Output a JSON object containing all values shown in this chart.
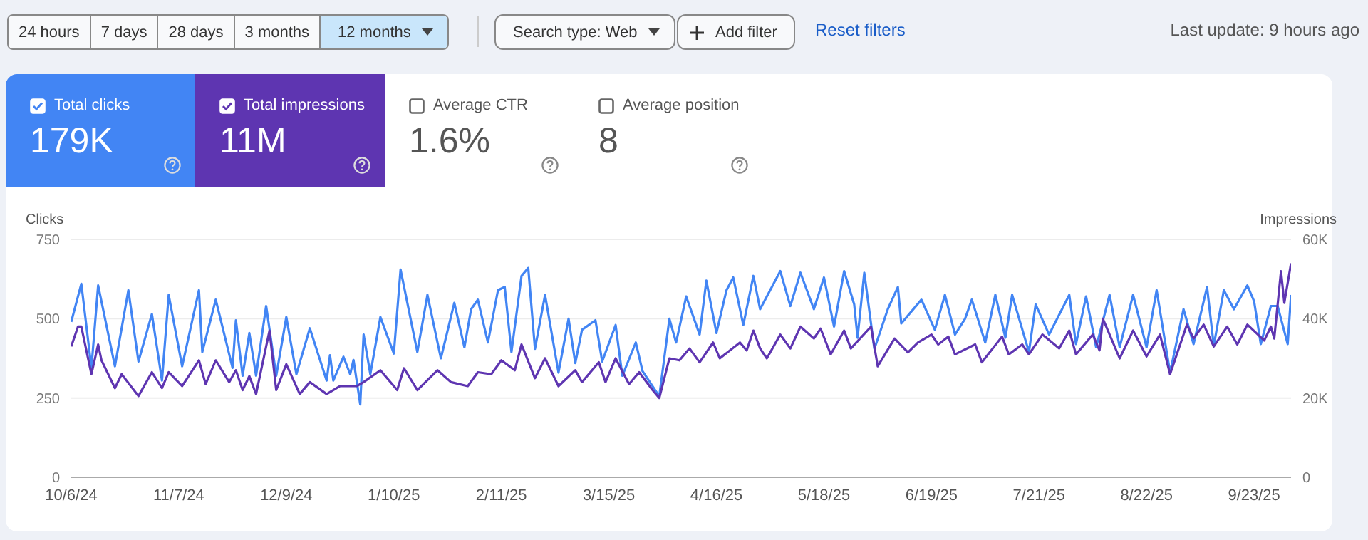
{
  "chart_data": {
    "type": "line",
    "ylabel": "Clicks",
    "y2label": "Impressions",
    "xlim": [
      "2024-10-06",
      "2025-10-04"
    ],
    "xticks": [
      {
        "value": "2024-10-06",
        "label": "10/6/24"
      },
      {
        "value": "2024-11-07",
        "label": "11/7/24"
      },
      {
        "value": "2024-12-09",
        "label": "12/9/24"
      },
      {
        "value": "2025-01-10",
        "label": "1/10/25"
      },
      {
        "value": "2025-02-11",
        "label": "2/11/25"
      },
      {
        "value": "2025-03-15",
        "label": "3/15/25"
      },
      {
        "value": "2025-04-16",
        "label": "4/16/25"
      },
      {
        "value": "2025-05-18",
        "label": "5/18/25"
      },
      {
        "value": "2025-06-19",
        "label": "6/19/25"
      },
      {
        "value": "2025-07-21",
        "label": "7/21/25"
      },
      {
        "value": "2025-08-22",
        "label": "8/22/25"
      },
      {
        "value": "2025-09-23",
        "label": "9/23/25"
      }
    ],
    "ylim": [
      0,
      750
    ],
    "yticks": [
      0,
      250,
      500,
      750
    ],
    "y2lim": [
      0,
      60000
    ],
    "y2ticks": [
      0,
      {
        "value": 20000,
        "label": "20K"
      },
      {
        "value": 40000,
        "label": "40K"
      },
      {
        "value": 60000,
        "label": "60K"
      }
    ],
    "grid": "y",
    "legend": "top left",
    "series": [
      {
        "name": "Total clicks",
        "color": "#4285f4",
        "x": [
          "2024-10-06",
          "2024-10-09",
          "2024-10-12",
          "2024-10-14",
          "2024-10-19",
          "2024-10-23",
          "2024-10-26",
          "2024-10-30",
          "2024-11-02",
          "2024-11-04",
          "2024-11-08",
          "2024-11-13",
          "2024-11-14",
          "2024-11-18",
          "2024-11-23",
          "2024-11-24",
          "2024-11-26",
          "2024-11-28",
          "2024-11-30",
          "2024-12-03",
          "2024-12-06",
          "2024-12-09",
          "2024-12-12",
          "2024-12-16",
          "2024-12-21",
          "2024-12-22",
          "2024-12-23",
          "2024-12-26",
          "2024-12-28",
          "2024-12-29",
          "2024-12-31",
          "2025-01-01",
          "2025-01-03",
          "2025-01-06",
          "2025-01-10",
          "2025-01-12",
          "2025-01-17",
          "2025-01-20",
          "2025-01-24",
          "2025-01-28",
          "2025-01-31",
          "2025-02-02",
          "2025-02-04",
          "2025-02-07",
          "2025-02-10",
          "2025-02-12",
          "2025-02-14",
          "2025-02-17",
          "2025-02-19",
          "2025-02-21",
          "2025-02-24",
          "2025-02-28",
          "2025-03-03",
          "2025-03-05",
          "2025-03-07",
          "2025-03-11",
          "2025-03-13",
          "2025-03-17",
          "2025-03-19",
          "2025-03-23",
          "2025-03-25",
          "2025-03-30",
          "2025-04-02",
          "2025-04-04",
          "2025-04-07",
          "2025-04-11",
          "2025-04-13",
          "2025-04-16",
          "2025-04-19",
          "2025-04-21",
          "2025-04-24",
          "2025-04-27",
          "2025-04-29",
          "2025-05-05",
          "2025-05-08",
          "2025-05-11",
          "2025-05-15",
          "2025-05-18",
          "2025-05-21",
          "2025-05-24",
          "2025-05-27",
          "2025-05-28",
          "2025-05-30",
          "2025-06-02",
          "2025-06-06",
          "2025-06-09",
          "2025-06-10",
          "2025-06-16",
          "2025-06-20",
          "2025-06-23",
          "2025-06-26",
          "2025-06-29",
          "2025-07-01",
          "2025-07-05",
          "2025-07-08",
          "2025-07-11",
          "2025-07-13",
          "2025-07-18",
          "2025-07-20",
          "2025-07-24",
          "2025-07-30",
          "2025-08-01",
          "2025-08-04",
          "2025-08-07",
          "2025-08-11",
          "2025-08-14",
          "2025-08-18",
          "2025-08-22",
          "2025-08-25",
          "2025-08-29",
          "2025-09-02",
          "2025-09-05",
          "2025-09-09",
          "2025-09-11",
          "2025-09-14",
          "2025-09-17",
          "2025-09-21",
          "2025-09-23",
          "2025-09-25",
          "2025-09-28",
          "2025-09-30",
          "2025-10-03",
          "2025-10-04"
        ],
        "values": [
          490,
          610,
          345,
          605,
          350,
          590,
          365,
          515,
          305,
          575,
          350,
          590,
          395,
          560,
          345,
          495,
          320,
          455,
          320,
          540,
          320,
          505,
          325,
          470,
          305,
          385,
          305,
          380,
          325,
          370,
          230,
          450,
          325,
          505,
          390,
          655,
          395,
          575,
          375,
          550,
          410,
          530,
          560,
          425,
          590,
          600,
          395,
          635,
          660,
          405,
          575,
          330,
          500,
          360,
          465,
          495,
          365,
          480,
          320,
          425,
          335,
          255,
          500,
          425,
          570,
          450,
          620,
          455,
          590,
          630,
          480,
          635,
          530,
          650,
          540,
          645,
          530,
          630,
          475,
          650,
          545,
          440,
          645,
          405,
          530,
          600,
          485,
          560,
          465,
          575,
          450,
          500,
          560,
          425,
          575,
          440,
          575,
          395,
          545,
          450,
          575,
          420,
          570,
          410,
          575,
          410,
          575,
          410,
          590,
          330,
          530,
          420,
          600,
          415,
          590,
          530,
          605,
          555,
          420,
          540,
          540,
          420,
          575
        ]
      },
      {
        "name": "Total impressions",
        "color": "#5e35b1",
        "axis": "y2",
        "x": [
          "2024-10-06",
          "2024-10-08",
          "2024-10-09",
          "2024-10-12",
          "2024-10-14",
          "2024-10-15",
          "2024-10-19",
          "2024-10-21",
          "2024-10-26",
          "2024-10-30",
          "2024-11-02",
          "2024-11-04",
          "2024-11-08",
          "2024-11-13",
          "2024-11-15",
          "2024-11-18",
          "2024-11-22",
          "2024-11-24",
          "2024-11-26",
          "2024-11-28",
          "2024-11-30",
          "2024-12-04",
          "2024-12-06",
          "2024-12-09",
          "2024-12-13",
          "2024-12-16",
          "2024-12-21",
          "2024-12-25",
          "2024-12-30",
          "2025-01-01",
          "2025-01-06",
          "2025-01-11",
          "2025-01-13",
          "2025-01-17",
          "2025-01-23",
          "2025-01-27",
          "2025-02-01",
          "2025-02-04",
          "2025-02-08",
          "2025-02-11",
          "2025-02-15",
          "2025-02-17",
          "2025-02-21",
          "2025-02-24",
          "2025-02-28",
          "2025-03-05",
          "2025-03-07",
          "2025-03-12",
          "2025-03-14",
          "2025-03-17",
          "2025-03-21",
          "2025-03-24",
          "2025-03-28",
          "2025-03-30",
          "2025-04-02",
          "2025-04-05",
          "2025-04-08",
          "2025-04-11",
          "2025-04-15",
          "2025-04-17",
          "2025-04-23",
          "2025-04-25",
          "2025-04-27",
          "2025-04-29",
          "2025-05-01",
          "2025-05-05",
          "2025-05-08",
          "2025-05-11",
          "2025-05-15",
          "2025-05-17",
          "2025-05-20",
          "2025-05-24",
          "2025-05-26",
          "2025-06-01",
          "2025-06-03",
          "2025-06-08",
          "2025-06-12",
          "2025-06-15",
          "2025-06-19",
          "2025-06-21",
          "2025-06-24",
          "2025-06-26",
          "2025-07-02",
          "2025-07-04",
          "2025-07-10",
          "2025-07-12",
          "2025-07-16",
          "2025-07-18",
          "2025-07-22",
          "2025-07-27",
          "2025-07-30",
          "2025-08-01",
          "2025-08-06",
          "2025-08-08",
          "2025-08-09",
          "2025-08-14",
          "2025-08-18",
          "2025-08-22",
          "2025-08-26",
          "2025-08-29",
          "2025-09-03",
          "2025-09-05",
          "2025-09-08",
          "2025-09-11",
          "2025-09-15",
          "2025-09-18",
          "2025-09-21",
          "2025-09-26",
          "2025-09-28",
          "2025-09-29",
          "2025-10-01",
          "2025-10-02",
          "2025-10-04"
        ],
        "values": [
          33000,
          38000,
          38000,
          26000,
          33500,
          29500,
          22500,
          26000,
          20500,
          26500,
          22500,
          26500,
          23000,
          29500,
          23500,
          29500,
          24000,
          27000,
          22000,
          25500,
          21000,
          37000,
          22000,
          28500,
          21000,
          24000,
          21000,
          23000,
          23000,
          24000,
          27000,
          22000,
          27500,
          22000,
          27000,
          24000,
          23000,
          26500,
          26000,
          29500,
          27000,
          33500,
          25000,
          30000,
          23000,
          27000,
          24000,
          29000,
          24000,
          30000,
          23500,
          26500,
          22000,
          20000,
          30000,
          29500,
          32500,
          29000,
          34000,
          30000,
          34000,
          32000,
          37000,
          32500,
          30000,
          36000,
          32500,
          38000,
          35000,
          37500,
          31000,
          37000,
          32500,
          38000,
          28000,
          35000,
          31500,
          34000,
          36000,
          33500,
          35500,
          31000,
          33500,
          29000,
          35500,
          31000,
          33500,
          31000,
          36000,
          32500,
          37000,
          31000,
          36000,
          32000,
          40000,
          30000,
          37000,
          30500,
          36000,
          26000,
          38500,
          35000,
          38500,
          33000,
          38000,
          33500,
          38500,
          34500,
          38000,
          35000,
          52000,
          44000,
          54000
        ]
      }
    ],
    "annotations": [
      "24 hours",
      "7 days",
      "28 days",
      "3 months",
      "12 months",
      "Search type: Web",
      "Add filter",
      "Reset filters",
      "Last update: 9 hours ago",
      "179K",
      "11M",
      "Average CTR",
      "1.6%",
      "Average position",
      "8"
    ]
  }
}
